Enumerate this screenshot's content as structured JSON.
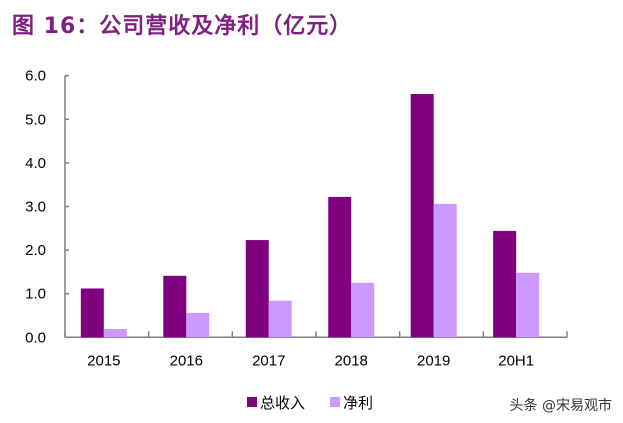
{
  "title": "图 16：公司营收及净利（亿元）",
  "watermark": "头条 @宋易观市",
  "chart_data": {
    "type": "bar",
    "title": "图 16：公司营收及净利（亿元）",
    "categories": [
      "2015",
      "2016",
      "2017",
      "2018",
      "2019",
      "20H1"
    ],
    "series": [
      {
        "name": "总收入",
        "color": "#800080",
        "values": [
          1.12,
          1.41,
          2.23,
          3.22,
          5.58,
          2.44
        ]
      },
      {
        "name": "净利",
        "color": "#cc99ff",
        "values": [
          0.19,
          0.56,
          0.84,
          1.25,
          3.06,
          1.48
        ]
      }
    ],
    "ylim": [
      0,
      6
    ],
    "yticks": [
      "0.0",
      "1.0",
      "2.0",
      "3.0",
      "4.0",
      "5.0",
      "6.0"
    ],
    "grid": false,
    "legend": "bottom"
  }
}
